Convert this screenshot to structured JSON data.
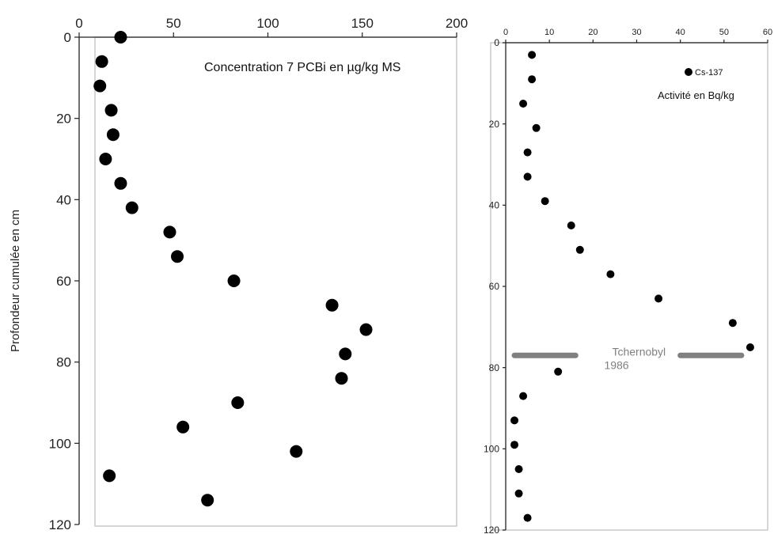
{
  "chart_data": [
    {
      "type": "scatter",
      "title": "",
      "annotation": "Concentration 7 PCBi en µg/kg MS",
      "xlabel": "",
      "ylabel": "Profondeur cumulée en cm",
      "xlim": [
        0,
        200
      ],
      "ylim": [
        120,
        0
      ],
      "x_axis_position": "top",
      "x_ticks": [
        0,
        50,
        100,
        150,
        200
      ],
      "y_ticks": [
        0,
        20,
        40,
        60,
        80,
        100,
        120
      ],
      "grid": false,
      "marker_color": "#000000",
      "series": [
        {
          "points": [
            {
              "x": 22,
              "y": 0
            },
            {
              "x": 12,
              "y": 6
            },
            {
              "x": 11,
              "y": 12
            },
            {
              "x": 17,
              "y": 18
            },
            {
              "x": 18,
              "y": 24
            },
            {
              "x": 14,
              "y": 30
            },
            {
              "x": 22,
              "y": 36
            },
            {
              "x": 28,
              "y": 42
            },
            {
              "x": 48,
              "y": 48
            },
            {
              "x": 52,
              "y": 54
            },
            {
              "x": 82,
              "y": 60
            },
            {
              "x": 134,
              "y": 66
            },
            {
              "x": 152,
              "y": 72
            },
            {
              "x": 141,
              "y": 78
            },
            {
              "x": 139,
              "y": 84
            },
            {
              "x": 84,
              "y": 90
            },
            {
              "x": 55,
              "y": 96
            },
            {
              "x": 115,
              "y": 102
            },
            {
              "x": 16,
              "y": 108
            },
            {
              "x": 68,
              "y": 114
            }
          ]
        }
      ]
    },
    {
      "type": "scatter",
      "title": "",
      "annotation": "Activité en Bq/kg",
      "xlabel": "",
      "ylabel": "",
      "xlim": [
        0,
        60
      ],
      "ylim": [
        120,
        0
      ],
      "x_axis_position": "top",
      "x_ticks": [
        0,
        10,
        20,
        30,
        40,
        50,
        60
      ],
      "y_ticks": [
        0,
        20,
        40,
        60,
        80,
        100,
        120
      ],
      "grid": false,
      "legend": {
        "label": "Cs-137",
        "placement": "top-right"
      },
      "marker_color": "#000000",
      "series": [
        {
          "name": "Cs-137",
          "points": [
            {
              "x": 6,
              "y": 3
            },
            {
              "x": 6,
              "y": 9
            },
            {
              "x": 4,
              "y": 15
            },
            {
              "x": 7,
              "y": 21
            },
            {
              "x": 5,
              "y": 27
            },
            {
              "x": 5,
              "y": 33
            },
            {
              "x": 9,
              "y": 39
            },
            {
              "x": 15,
              "y": 45
            },
            {
              "x": 17,
              "y": 51
            },
            {
              "x": 24,
              "y": 57
            },
            {
              "x": 35,
              "y": 63
            },
            {
              "x": 52,
              "y": 69
            },
            {
              "x": 56,
              "y": 75
            },
            {
              "x": 12,
              "y": 81
            },
            {
              "x": 4,
              "y": 87
            },
            {
              "x": 2,
              "y": 93
            },
            {
              "x": 2,
              "y": 99
            },
            {
              "x": 3,
              "y": 105
            },
            {
              "x": 3,
              "y": 111
            },
            {
              "x": 5,
              "y": 117
            }
          ]
        }
      ],
      "reference_line": {
        "label_line1": "Tchernobyl",
        "label_line2": "1986",
        "y": 77,
        "segments": [
          [
            2,
            16
          ],
          [
            40,
            54
          ]
        ],
        "color": "#808080"
      }
    }
  ]
}
